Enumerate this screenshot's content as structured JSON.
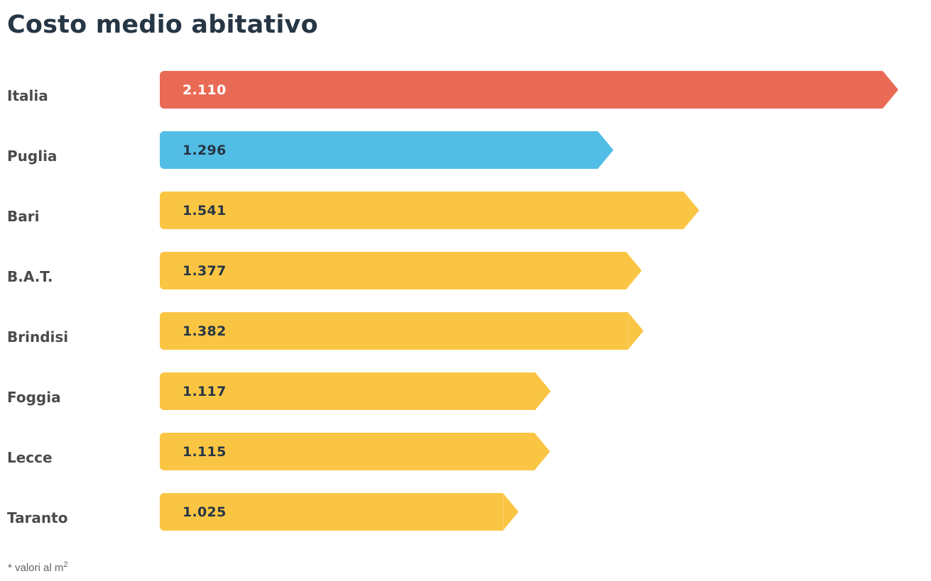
{
  "page": {
    "footnote": "* valori al m",
    "footnote_sup": "2",
    "background": "#FFFFFF"
  },
  "colors": {
    "title_text": "#263645",
    "category_label_text": "#4A4B4D",
    "footnote_text": "#5F6368",
    "italia_bar": "#E96B56",
    "puglia_bar": "#53BEE5",
    "province_bar": "#FBC544",
    "value_on_red": "#FFFFFF",
    "value_on_light": "#263645"
  },
  "chart_data": {
    "type": "bar",
    "orientation": "horizontal",
    "title": "Costo medio abitativo",
    "xlabel": "",
    "ylabel": "",
    "categories": [
      "Italia",
      "Puglia",
      "Bari",
      "B.A.T.",
      "Brindisi",
      "Foggia",
      "Lecce",
      "Taranto"
    ],
    "values": [
      2110,
      1296,
      1541,
      1377,
      1382,
      1117,
      1115,
      1025
    ],
    "value_labels": [
      "2.110",
      "1.296",
      "1.541",
      "1.377",
      "1.382",
      "1.117",
      "1.115",
      "1.025"
    ],
    "bar_colors": [
      "#E96B56",
      "#53BEE5",
      "#FBC544",
      "#FBC544",
      "#FBC544",
      "#FBC544",
      "#FBC544",
      "#FBC544"
    ],
    "value_text_colors": [
      "#FFFFFF",
      "#263645",
      "#263645",
      "#263645",
      "#263645",
      "#263645",
      "#263645",
      "#263645"
    ],
    "xlim": [
      0,
      2110
    ],
    "grid": false,
    "legend": false,
    "bar_shape": "right-pointing-arrow",
    "unit_note": "* valori al m²"
  }
}
